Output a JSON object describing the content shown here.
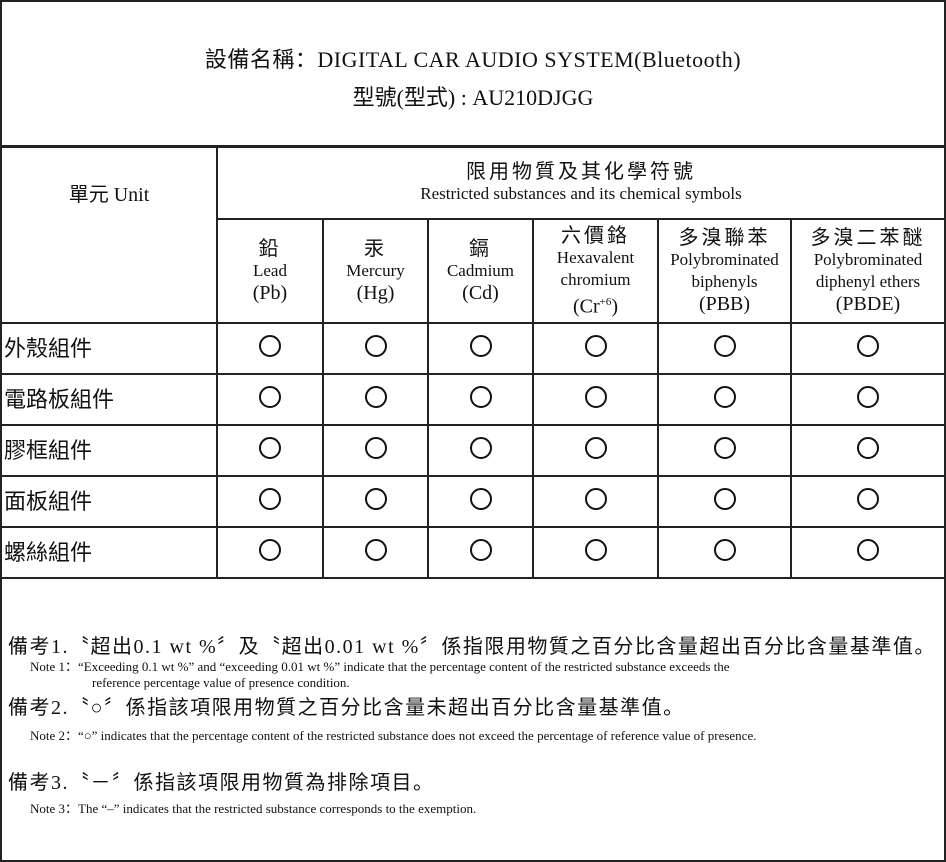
{
  "title": {
    "device_name": "設備名稱：DIGITAL CAR AUDIO SYSTEM(Bluetooth)",
    "model": "型號(型式) : AU210DJGG"
  },
  "table": {
    "unit_header": "單元 Unit",
    "group_header_zh": "限用物質及其化學符號",
    "group_header_en": "Restricted substances and its chemical symbols",
    "columns": [
      {
        "zh": "鉛",
        "en": "Lead",
        "symbol": "(Pb)"
      },
      {
        "zh": "汞",
        "en": "Mercury",
        "symbol": "(Hg)"
      },
      {
        "zh": "鎘",
        "en": "Cadmium",
        "symbol": "(Cd)"
      },
      {
        "zh": "六價鉻",
        "en": "Hexavalent",
        "en2": "chromium",
        "symbol": "(Cr",
        "symbol_sup": "+6",
        "symbol_end": ")"
      },
      {
        "zh": "多溴聯苯",
        "en": "Polybrominated",
        "en2": "biphenyls",
        "symbol": "(PBB)"
      },
      {
        "zh": "多溴二苯醚",
        "en": "Polybrominated",
        "en2": "diphenyl ethers",
        "symbol": "(PBDE)"
      }
    ],
    "rows": [
      {
        "label": "外殼組件",
        "values": [
          "○",
          "○",
          "○",
          "○",
          "○",
          "○"
        ]
      },
      {
        "label": "電路板組件",
        "values": [
          "○",
          "○",
          "○",
          "○",
          "○",
          "○"
        ]
      },
      {
        "label": "膠框組件",
        "values": [
          "○",
          "○",
          "○",
          "○",
          "○",
          "○"
        ]
      },
      {
        "label": "面板組件",
        "values": [
          "○",
          "○",
          "○",
          "○",
          "○",
          "○"
        ]
      },
      {
        "label": "螺絲組件",
        "values": [
          "○",
          "○",
          "○",
          "○",
          "○",
          "○"
        ]
      }
    ]
  },
  "notes": [
    {
      "zh": "備考1.〝超出0.1 wt %〞及〝超出0.01 wt %〞係指限用物質之百分比含量超出百分比含量基準值。",
      "en": "Note 1：“Exceeding 0.1 wt %” and “exceeding 0.01 wt %” indicate that the percentage content of the restricted substance exceeds the",
      "en_cont": "reference percentage value of presence condition."
    },
    {
      "zh": "備考2.〝○〞係指該項限用物質之百分比含量未超出百分比含量基準值。",
      "en": "Note 2：“○” indicates that the percentage content of the restricted substance does not exceed the percentage of reference value of presence."
    },
    {
      "zh": "備考3.〝－〞係指該項限用物質為排除項目。",
      "en": "Note 3：The “–” indicates that the restricted substance corresponds to the exemption."
    }
  ]
}
